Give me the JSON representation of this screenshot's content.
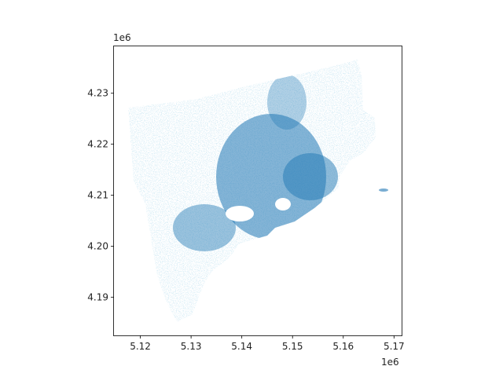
{
  "chart_data": {
    "type": "map",
    "title": "",
    "xlabel": "",
    "ylabel": "",
    "x_offset_label": "1e6",
    "y_offset_label": "1e6",
    "xlim": [
      5.1148,
      5.1715
    ],
    "ylim": [
      4.1825,
      4.2392
    ],
    "x_ticks": [
      {
        "value": 5.12,
        "label": "5.12"
      },
      {
        "value": 5.13,
        "label": "5.13"
      },
      {
        "value": 5.14,
        "label": "5.14"
      },
      {
        "value": 5.15,
        "label": "5.15"
      },
      {
        "value": 5.16,
        "label": "5.16"
      },
      {
        "value": 5.17,
        "label": "5.17"
      }
    ],
    "y_ticks": [
      {
        "value": 4.19,
        "label": "4.19"
      },
      {
        "value": 4.2,
        "label": "4.20"
      },
      {
        "value": 4.21,
        "label": "4.21"
      },
      {
        "value": 4.22,
        "label": "4.22"
      },
      {
        "value": 4.23,
        "label": "4.23"
      }
    ],
    "grid": false,
    "colors": {
      "network": "#1f77b4",
      "axes": "#000000",
      "background": "#ffffff"
    }
  }
}
